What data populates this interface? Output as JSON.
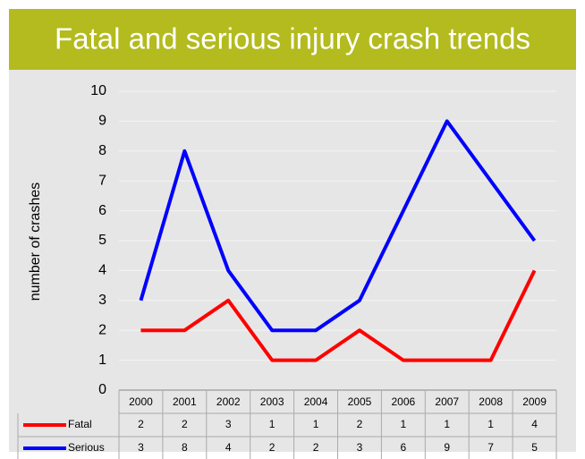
{
  "chart_data": {
    "type": "line",
    "title": "Fatal and serious injury crash trends",
    "y_label": "number of crashes",
    "categories": [
      "2000",
      "2001",
      "2002",
      "2003",
      "2004",
      "2005",
      "2006",
      "2007",
      "2008",
      "2009"
    ],
    "series": [
      {
        "name": "Fatal",
        "color": "#ff0000",
        "values": [
          2,
          2,
          3,
          1,
          1,
          2,
          1,
          1,
          1,
          4
        ]
      },
      {
        "name": "Serious",
        "color": "#0000ff",
        "values": [
          3,
          8,
          4,
          2,
          2,
          3,
          6,
          9,
          7,
          5
        ]
      }
    ],
    "ylim": [
      0,
      10
    ],
    "yticks": [
      0,
      1,
      2,
      3,
      4,
      5,
      6,
      7,
      8,
      9,
      10
    ],
    "grid": true,
    "data_table": true
  }
}
